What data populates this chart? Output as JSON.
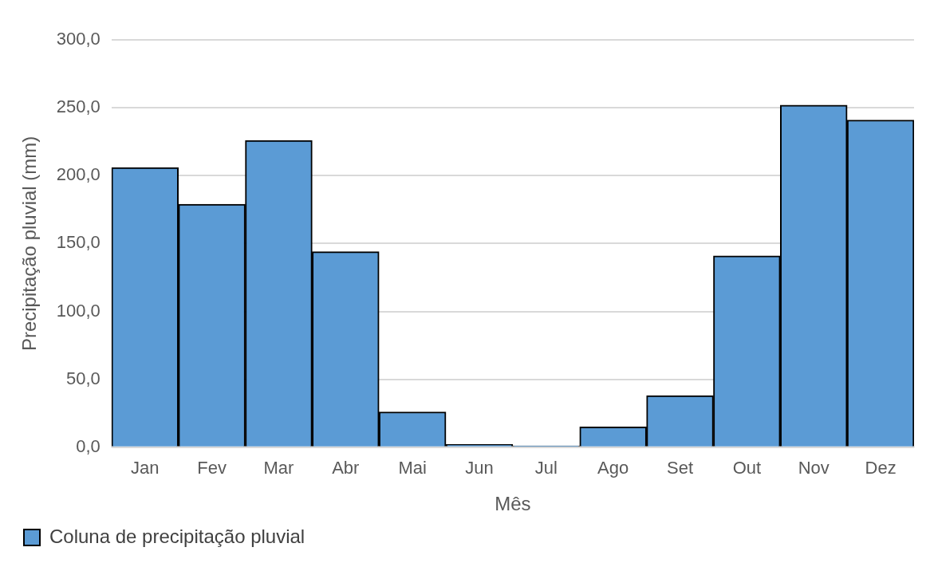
{
  "chart_data": {
    "type": "bar",
    "xlabel": "Mês",
    "ylabel": "Precipitação pluvial (mm)",
    "categories": [
      "Jan",
      "Fev",
      "Mar",
      "Abr",
      "Mai",
      "Jun",
      "Jul",
      "Ago",
      "Set",
      "Out",
      "Nov",
      "Dez"
    ],
    "series": [
      {
        "name": "Coluna de precipitação pluvial",
        "color": "#5b9bd5",
        "values": [
          206,
          179,
          226,
          144,
          26,
          2,
          1,
          15,
          38,
          141,
          252,
          241
        ]
      }
    ],
    "ylim": [
      0,
      300
    ],
    "yticks": [
      {
        "value": 0,
        "label": "0,0"
      },
      {
        "value": 50,
        "label": "50,0"
      },
      {
        "value": 100,
        "label": "100,0"
      },
      {
        "value": 150,
        "label": "150,0"
      },
      {
        "value": 200,
        "label": "200,0"
      },
      {
        "value": 250,
        "label": "250,0"
      },
      {
        "value": 300,
        "label": "300,0"
      }
    ],
    "grid": "y",
    "legend": "bottom left"
  }
}
